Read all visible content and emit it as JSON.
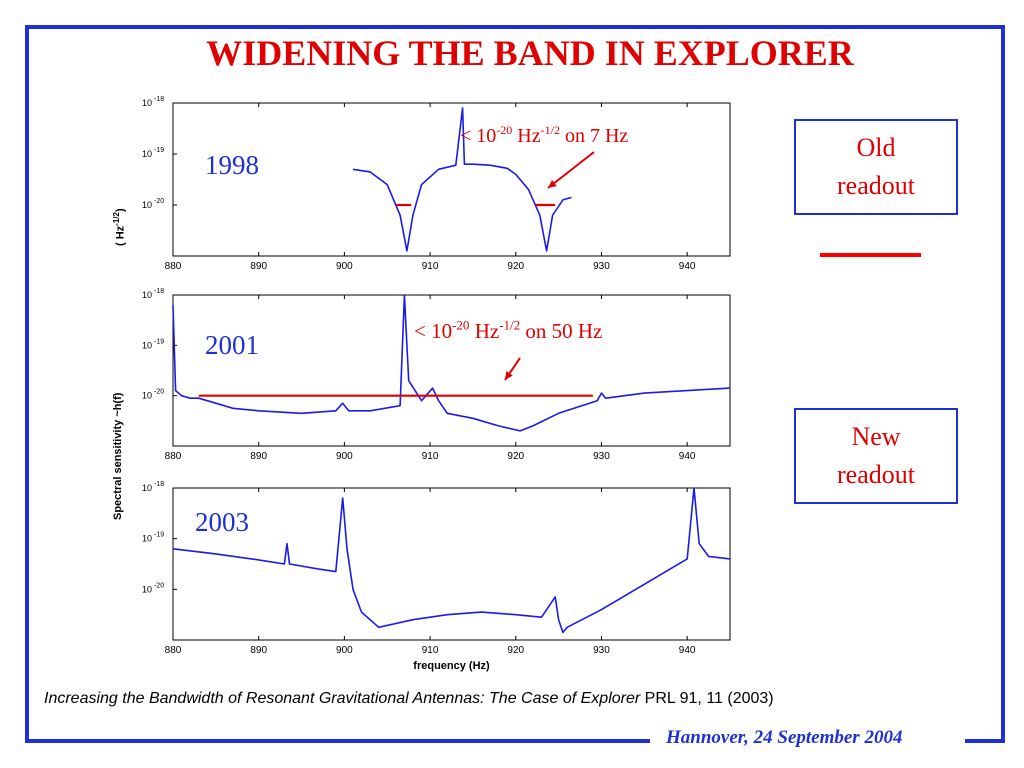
{
  "title": "WIDENING THE BAND  IN EXPLORER",
  "boxes": {
    "old": [
      "Old",
      "readout"
    ],
    "new": [
      "New",
      "readout"
    ]
  },
  "caption": {
    "italic": "Increasing the Bandwidth of Resonant Gravitational Antennas: The Case of Explorer",
    "plain": " PRL 91, 11 (2003)"
  },
  "footer": "Hannover, 24 September 2004",
  "colors": {
    "title": "#e00000",
    "frame": "#1e2fd6",
    "trace": "#1a1aee",
    "annotation": "#e00000"
  },
  "chart_data": [
    {
      "type": "line",
      "year_label": "1998",
      "ylabel_unit": "( Hz",
      "ylabel_unit_sup": "-1/2",
      "ylabel_unit_close": ")",
      "x_ticks": [
        880,
        890,
        900,
        910,
        920,
        930,
        940
      ],
      "y_ticks": [
        "10",
        "10",
        "10"
      ],
      "y_tick_exps": [
        "-18",
        "-19",
        "-20"
      ],
      "xlim": [
        880,
        945
      ],
      "annotation": {
        "pre": "< 10",
        "sup1": "-20",
        "mid": " Hz",
        "sup2": "-1/2",
        "post": " on 7 Hz"
      },
      "series": [
        {
          "x": [
            901,
            903,
            905,
            906.5,
            907.3,
            908,
            909,
            911,
            913,
            913.8,
            914,
            915,
            917,
            919,
            920,
            921.5,
            922.8,
            923.6,
            924.3,
            925.5,
            926.5
          ],
          "y": [
            -19.3,
            -19.35,
            -19.6,
            -20.2,
            -20.9,
            -20.2,
            -19.6,
            -19.3,
            -19.22,
            -18.1,
            -19.2,
            -19.2,
            -19.22,
            -19.28,
            -19.4,
            -19.7,
            -20.2,
            -20.9,
            -20.2,
            -19.9,
            -19.85
          ]
        }
      ],
      "threshold": {
        "y": -20,
        "x_ranges": [
          [
            906,
            907.8
          ],
          [
            922.3,
            924.6
          ]
        ]
      }
    },
    {
      "type": "line",
      "year_label": "2001",
      "x_ticks": [
        880,
        890,
        900,
        910,
        920,
        930,
        940
      ],
      "y_ticks": [
        "10",
        "10",
        "10"
      ],
      "y_tick_exps": [
        "-18",
        "-19",
        "-20"
      ],
      "xlim": [
        880,
        945
      ],
      "annotation": {
        "pre": "< 10",
        "sup1": "-20",
        "mid": " Hz",
        "sup2": "-1/2",
        "post": " on 50 Hz"
      },
      "series": [
        {
          "x": [
            880,
            880.3,
            881,
            882,
            883,
            885,
            887,
            890,
            895,
            899,
            899.8,
            900.5,
            903,
            906.5,
            907,
            907.5,
            909,
            910.3,
            911,
            912,
            915,
            918,
            920.5,
            922,
            925,
            929.5,
            930,
            930.5,
            935,
            940,
            945
          ],
          "y": [
            -18.2,
            -19.9,
            -20,
            -20.05,
            -20.05,
            -20.15,
            -20.25,
            -20.3,
            -20.35,
            -20.3,
            -20.15,
            -20.3,
            -20.3,
            -20.2,
            -18.0,
            -19.7,
            -20.1,
            -19.85,
            -20.1,
            -20.35,
            -20.45,
            -20.6,
            -20.7,
            -20.6,
            -20.35,
            -20.1,
            -19.95,
            -20.05,
            -19.95,
            -19.9,
            -19.85
          ]
        }
      ],
      "threshold": {
        "y": -20,
        "x_ranges": [
          [
            883,
            929
          ]
        ]
      }
    },
    {
      "type": "line",
      "year_label": "2003",
      "xlabel": "frequency    (Hz)",
      "ylabel": "Spectral sensitivity   ~h(f)",
      "x_ticks": [
        880,
        890,
        900,
        910,
        920,
        930,
        940
      ],
      "y_ticks": [
        "10",
        "10",
        "10"
      ],
      "y_tick_exps": [
        "-18",
        "-19",
        "-20"
      ],
      "xlim": [
        880,
        945
      ],
      "series": [
        {
          "x": [
            880,
            885,
            890,
            893,
            893.3,
            893.6,
            897,
            899,
            899.8,
            900.3,
            901,
            902,
            904,
            908,
            912,
            916,
            920,
            923,
            924.6,
            925,
            925.5,
            926,
            930,
            935,
            938,
            940,
            940.8,
            941.4,
            942.5,
            945
          ],
          "y": [
            -19.2,
            -19.3,
            -19.42,
            -19.5,
            -19.1,
            -19.5,
            -19.6,
            -19.65,
            -18.2,
            -19.2,
            -20.0,
            -20.45,
            -20.75,
            -20.6,
            -20.5,
            -20.45,
            -20.5,
            -20.55,
            -20.15,
            -20.6,
            -20.85,
            -20.75,
            -20.4,
            -19.9,
            -19.6,
            -19.4,
            -18.0,
            -19.1,
            -19.35,
            -19.4
          ]
        }
      ]
    }
  ]
}
